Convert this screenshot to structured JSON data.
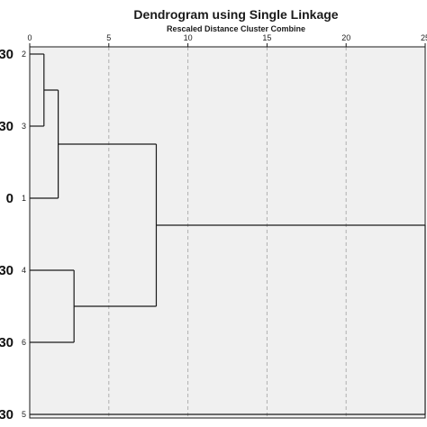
{
  "chart_data": {
    "type": "dendrogram",
    "title": "Dendrogram using Single Linkage",
    "subtitle": "Rescaled Distance Cluster Combine",
    "x_ticks": [
      0,
      5,
      10,
      15,
      20,
      25
    ],
    "xlim": [
      0,
      25
    ],
    "grid": true,
    "leaves": [
      {
        "case": "2",
        "left_label": "30"
      },
      {
        "case": "3",
        "left_label": "30"
      },
      {
        "case": "1",
        "left_label": "0"
      },
      {
        "case": "4",
        "left_label": "30"
      },
      {
        "case": "6",
        "left_label": "30"
      },
      {
        "case": "5",
        "left_label": "30"
      }
    ],
    "merges": [
      {
        "a": "2",
        "b": "3",
        "distance": 0.9
      },
      {
        "a": "2-3",
        "b": "1",
        "distance": 1.8
      },
      {
        "a": "4",
        "b": "6",
        "distance": 2.8
      },
      {
        "a": "2-3-1",
        "b": "4-6",
        "distance": 8.0
      },
      {
        "a": "2-3-1-4-6",
        "b": "5",
        "distance": 25.0
      }
    ]
  },
  "colors": {
    "plot_background": "#f0f0f0",
    "line": "#1a1a1a",
    "grid": "#b0b0b0"
  }
}
